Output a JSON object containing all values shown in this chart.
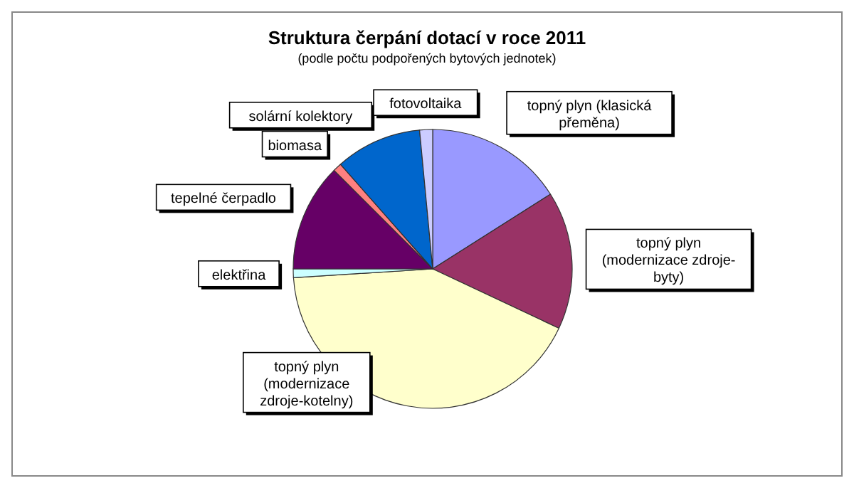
{
  "chart_data": {
    "type": "pie",
    "title": "Struktura čerpání dotací v roce 2011",
    "subtitle": "(podle počtu podpořených bytových jednotek)",
    "categories": [
      "topný plyn (klasická přeměna)",
      "topný plyn (modernizace zdroje- byty)",
      "topný plyn (modernizace zdroje-kotelny)",
      "elektřina",
      "tepelné čerpadlo",
      "biomasa",
      "solární kolektory",
      "fotovoltaika"
    ],
    "values": [
      16,
      16,
      42,
      1,
      12.5,
      1,
      10,
      1.5
    ],
    "colors": [
      "#9999ff",
      "#993366",
      "#ffffcc",
      "#ccffff",
      "#660066",
      "#ff8080",
      "#0066cc",
      "#ccccff"
    ],
    "legend": false
  }
}
